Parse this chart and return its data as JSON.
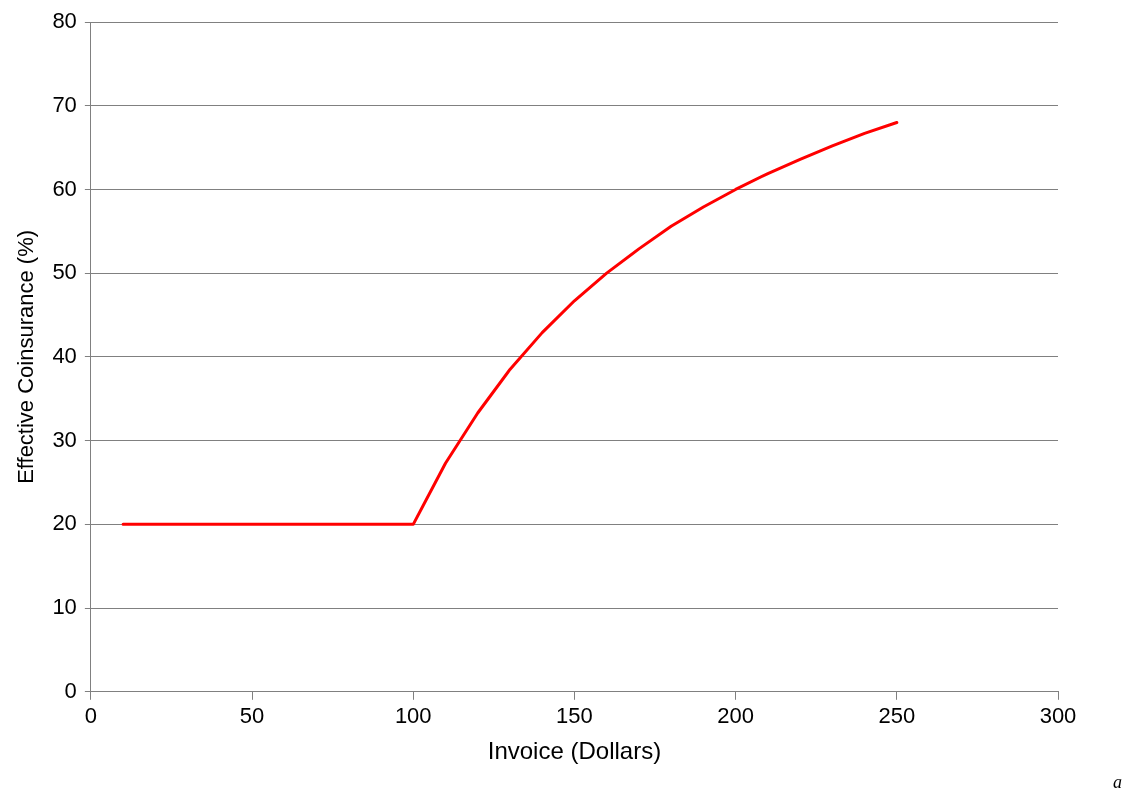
{
  "chart_data": {
    "type": "line",
    "xlabel": "Invoice (Dollars)",
    "ylabel": "Effective Coinsurance (%)",
    "x": [
      10,
      20,
      30,
      40,
      50,
      60,
      70,
      80,
      90,
      100,
      110,
      120,
      130,
      140,
      150,
      160,
      170,
      180,
      190,
      200,
      210,
      220,
      230,
      240,
      250
    ],
    "series": [
      {
        "color": "#ff0000",
        "values": [
          20,
          20,
          20,
          20,
          20,
          20,
          20,
          20,
          20,
          20,
          27.3,
          33.3,
          38.5,
          42.9,
          46.7,
          50,
          52.9,
          55.6,
          57.9,
          60,
          61.9,
          63.6,
          65.2,
          66.7,
          68
        ]
      }
    ],
    "xlim": [
      0,
      300
    ],
    "xticks": [
      0,
      50,
      100,
      150,
      200,
      250,
      300
    ],
    "ylim": [
      0,
      80
    ],
    "yticks": [
      0,
      10,
      20,
      30,
      40,
      50,
      60,
      70,
      80
    ],
    "grid": "y",
    "legend": false,
    "marker": "none",
    "line_style": "solid",
    "annotations": [
      "a"
    ]
  }
}
